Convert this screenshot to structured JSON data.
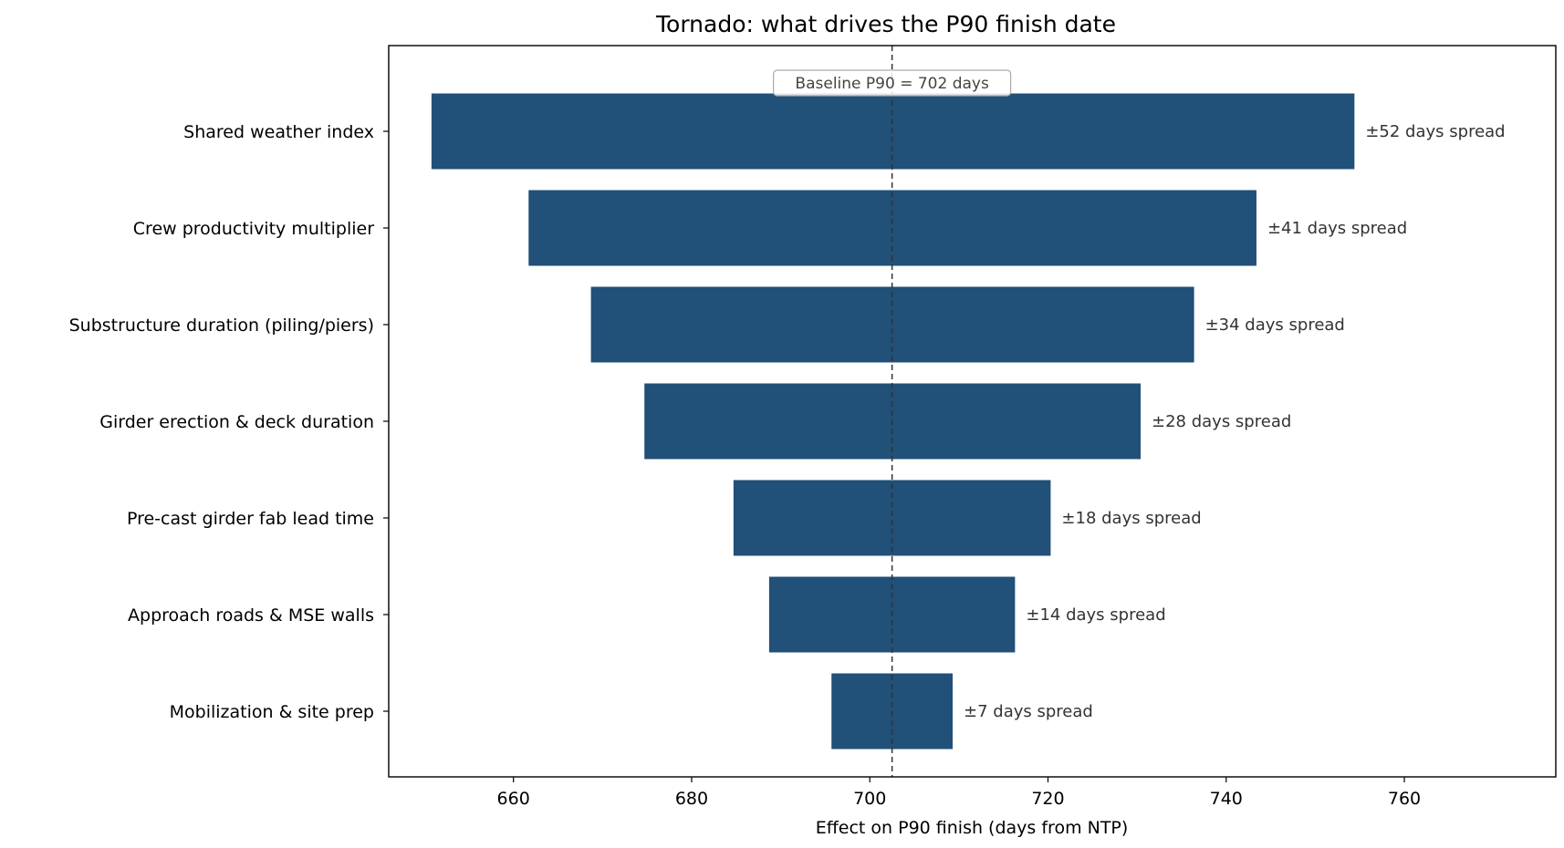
{
  "chart_data": {
    "type": "bar",
    "orientation": "horizontal",
    "title": "Tornado: what drives the P90 finish date",
    "xlabel": "Effect on P90 finish (days from NTP)",
    "ylabel": "",
    "xlim": [
      646,
      777
    ],
    "xticks": [
      660,
      680,
      700,
      720,
      740,
      760
    ],
    "grid": false,
    "baseline": {
      "value": 702.5,
      "label": "Baseline P90 = 702 days"
    },
    "categories": [
      "Shared weather index",
      "Crew productivity multiplier",
      "Substructure duration (piling/piers)",
      "Girder erection & deck duration",
      "Pre-cast girder fab lead time",
      "Approach roads & MSE walls",
      "Mobilization & site prep"
    ],
    "low": [
      650.8,
      661.7,
      668.7,
      674.7,
      684.7,
      688.7,
      695.7
    ],
    "high": [
      754.4,
      743.4,
      736.4,
      730.4,
      720.3,
      716.3,
      709.3
    ],
    "bar_labels": [
      "±52 days spread",
      "±41 days spread",
      "±34 days spread",
      "±28 days spread",
      "±18 days spread",
      "±14 days spread",
      "±7 days spread"
    ],
    "colors": {
      "bar": "#215078",
      "baseline_line": "#333333"
    }
  }
}
